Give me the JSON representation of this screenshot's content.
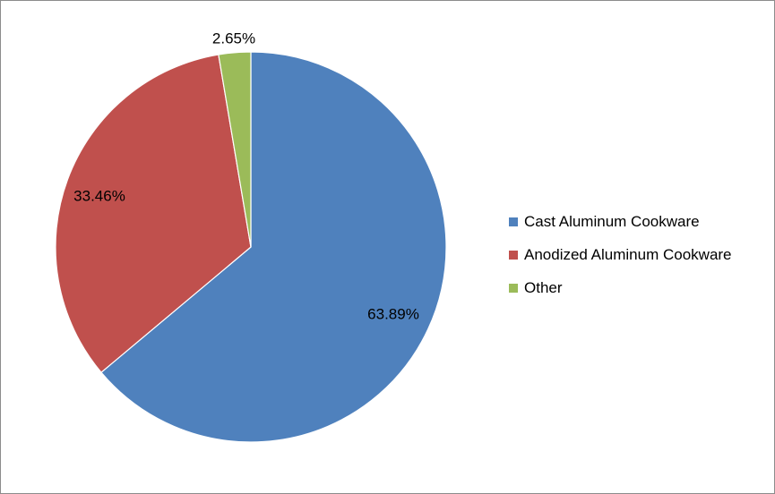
{
  "chart_data": {
    "type": "pie",
    "title": "",
    "start_angle_deg": 0,
    "direction": "clockwise",
    "legend_position": "right",
    "slices": [
      {
        "label": "Cast Aluminum Cookware",
        "value": 63.89,
        "value_label": "63.89%",
        "color": "#4F81BD"
      },
      {
        "label": "Anodized Aluminum Cookware",
        "value": 33.46,
        "value_label": "33.46%",
        "color": "#C0504D"
      },
      {
        "label": "Other",
        "value": 2.65,
        "value_label": "2.65%",
        "color": "#9BBB59"
      }
    ]
  }
}
